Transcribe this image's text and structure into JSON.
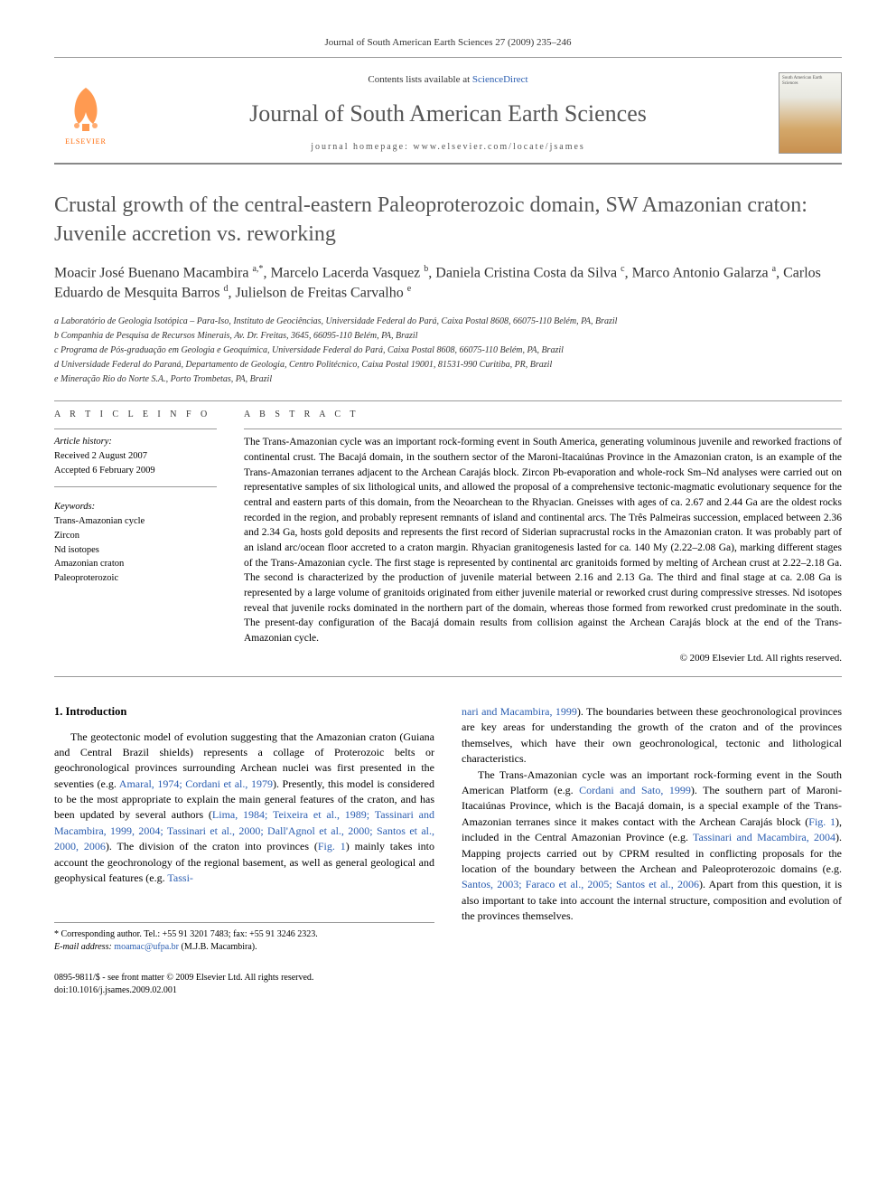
{
  "page_header": "Journal of South American Earth Sciences 27 (2009) 235–246",
  "masthead": {
    "contents_text": "Contents lists available at ",
    "contents_link": "ScienceDirect",
    "journal_name": "Journal of South American Earth Sciences",
    "homepage_text": "journal homepage: www.elsevier.com/locate/jsames",
    "publisher_logo_text": "ELSEVIER",
    "cover_title": "South American Earth Sciences"
  },
  "title": "Crustal growth of the central-eastern Paleoproterozoic domain, SW Amazonian craton: Juvenile accretion vs. reworking",
  "authors_html": "Moacir José Buenano Macambira <sup>a,*</sup>, Marcelo Lacerda Vasquez <sup>b</sup>, Daniela Cristina Costa da Silva <sup>c</sup>, Marco Antonio Galarza <sup>a</sup>, Carlos Eduardo de Mesquita Barros <sup>d</sup>, Julielson de Freitas Carvalho <sup>e</sup>",
  "affiliations": [
    "a Laboratório de Geologia Isotópica – Para-Iso, Instituto de Geociências, Universidade Federal do Pará, Caixa Postal 8608, 66075-110 Belém, PA, Brazil",
    "b Companhia de Pesquisa de Recursos Minerais, Av. Dr. Freitas, 3645, 66095-110 Belém, PA, Brazil",
    "c Programa de Pós-graduação em Geologia e Geoquímica, Universidade Federal do Pará, Caixa Postal 8608, 66075-110 Belém, PA, Brazil",
    "d Universidade Federal do Paraná, Departamento de Geologia, Centro Politécnico, Caixa Postal 19001, 81531-990 Curitiba, PR, Brazil",
    "e Mineração Rio do Norte S.A., Porto Trombetas, PA, Brazil"
  ],
  "article_info": {
    "label": "A R T I C L E   I N F O",
    "history_label": "Article history:",
    "received": "Received 2 August 2007",
    "accepted": "Accepted 6 February 2009",
    "keywords_label": "Keywords:",
    "keywords": [
      "Trans-Amazonian cycle",
      "Zircon",
      "Nd isotopes",
      "Amazonian craton",
      "Paleoproterozoic"
    ]
  },
  "abstract": {
    "label": "A B S T R A C T",
    "text": "The Trans-Amazonian cycle was an important rock-forming event in South America, generating voluminous juvenile and reworked fractions of continental crust. The Bacajá domain, in the southern sector of the Maroni-Itacaiúnas Province in the Amazonian craton, is an example of the Trans-Amazonian terranes adjacent to the Archean Carajás block. Zircon Pb-evaporation and whole-rock Sm–Nd analyses were carried out on representative samples of six lithological units, and allowed the proposal of a comprehensive tectonic-magmatic evolutionary sequence for the central and eastern parts of this domain, from the Neoarchean to the Rhyacian. Gneisses with ages of ca. 2.67 and 2.44 Ga are the oldest rocks recorded in the region, and probably represent remnants of island and continental arcs. The Três Palmeiras succession, emplaced between 2.36 and 2.34 Ga, hosts gold deposits and represents the first record of Siderian supracrustal rocks in the Amazonian craton. It was probably part of an island arc/ocean floor accreted to a craton margin. Rhyacian granitogenesis lasted for ca. 140 My (2.22–2.08 Ga), marking different stages of the Trans-Amazonian cycle. The first stage is represented by continental arc granitoids formed by melting of Archean crust at 2.22–2.18 Ga. The second is characterized by the production of juvenile material between 2.16 and 2.13 Ga. The third and final stage at ca. 2.08 Ga is represented by a large volume of granitoids originated from either juvenile material or reworked crust during compressive stresses. Nd isotopes reveal that juvenile rocks dominated in the northern part of the domain, whereas those formed from reworked crust predominate in the south. The present-day configuration of the Bacajá domain results from collision against the Archean Carajás block at the end of the Trans-Amazonian cycle.",
    "copyright": "© 2009 Elsevier Ltd. All rights reserved."
  },
  "body": {
    "heading": "1. Introduction",
    "col1_p1": "The geotectonic model of evolution suggesting that the Amazonian craton (Guiana and Central Brazil shields) represents a collage of Proterozoic belts or geochronological provinces surrounding Archean nuclei was first presented in the seventies (e.g. <a>Amaral, 1974; Cordani et al., 1979</a>). Presently, this model is considered to be the most appropriate to explain the main general features of the craton, and has been updated by several authors (<a>Lima, 1984; Teixeira et al., 1989; Tassinari and Macambira, 1999, 2004; Tassinari et al., 2000; Dall'Agnol et al., 2000; Santos et al., 2000, 2006</a>). The division of the craton into provinces (<a>Fig. 1</a>) mainly takes into account the geochronology of the regional basement, as well as general geological and geophysical features (e.g. <a>Tassi-</a>",
    "col2_p1": "<a>nari and Macambira, 1999</a>). The boundaries between these geochronological provinces are key areas for understanding the growth of the craton and of the provinces themselves, which have their own geochronological, tectonic and lithological characteristics.",
    "col2_p2": "The Trans-Amazonian cycle was an important rock-forming event in the South American Platform (e.g. <a>Cordani and Sato, 1999</a>). The southern part of Maroni-Itacaiúnas Province, which is the Bacajá domain, is a special example of the Trans-Amazonian terranes since it makes contact with the Archean Carajás block (<a>Fig. 1</a>), included in the Central Amazonian Province (e.g. <a>Tassinari and Macambira, 2004</a>). Mapping projects carried out by CPRM resulted in conflicting proposals for the location of the boundary between the Archean and Paleoproterozoic domains (e.g. <a>Santos, 2003; Faraco et al., 2005; Santos et al., 2006</a>). Apart from this question, it is also important to take into account the internal structure, composition and evolution of the provinces themselves."
  },
  "corr": {
    "line1": "* Corresponding author. Tel.: +55 91 3201 7483; fax: +55 91 3246 2323.",
    "email_label": "E-mail address: ",
    "email": "moamac@ufpa.br",
    "email_suffix": " (M.J.B. Macambira)."
  },
  "footer": {
    "line1": "0895-9811/$ - see front matter © 2009 Elsevier Ltd. All rights reserved.",
    "line2": "doi:10.1016/j.jsames.2009.02.001"
  },
  "colors": {
    "link": "#2a5db0",
    "elsevier_orange": "#ff6600",
    "heading_gray": "#555555",
    "rule_gray": "#999999"
  }
}
